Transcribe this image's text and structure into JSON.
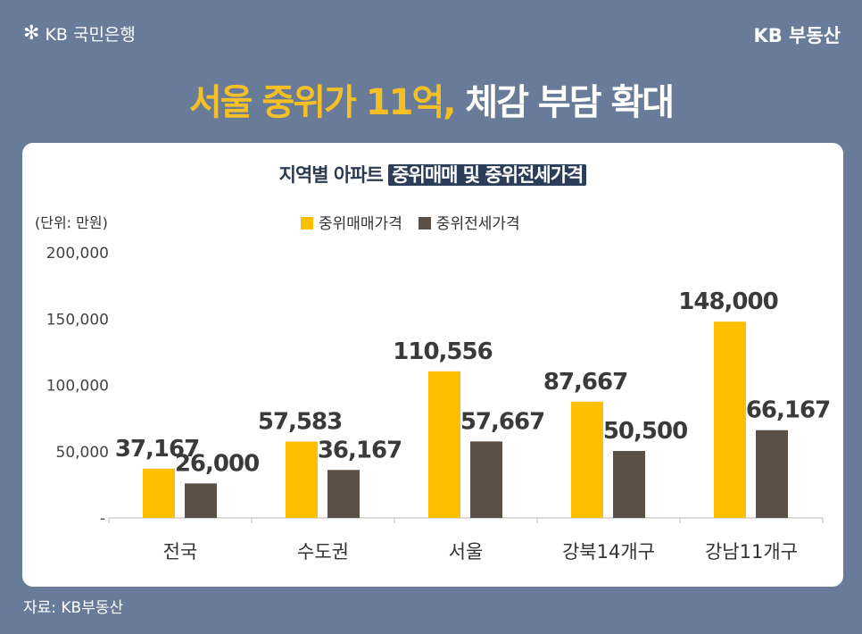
{
  "header": {
    "bank_logo": "KB 국민은행",
    "brand": "KB 부동산",
    "headline_highlight": "서울 중위가 11억,",
    "headline_rest": " 체감 부담 확대"
  },
  "footer": {
    "source": "자료: KB부동산"
  },
  "colors": {
    "background": "#687b98",
    "sale": "#fdbf00",
    "jeonse": "#5b5045",
    "headline_highlight": "#f5c026"
  },
  "chart_data": {
    "type": "bar",
    "title_plain": "지역별 아파트 ",
    "title_highlight": "중위매매 및 중위전세가격",
    "unit_label": "(단위: 만원)",
    "categories": [
      "전국",
      "수도권",
      "서울",
      "강북14개구",
      "강남11개구"
    ],
    "series": [
      {
        "name": "중위매매가격",
        "values": [
          37167,
          57583,
          110556,
          87667,
          148000
        ]
      },
      {
        "name": "중위전세가격",
        "values": [
          26000,
          36167,
          57667,
          50500,
          66167
        ]
      }
    ],
    "data_labels": [
      [
        "37,167",
        "57,583",
        "110,556",
        "87,667",
        "148,000"
      ],
      [
        "26,000",
        "36,167",
        "57,667",
        "50,500",
        "66,167"
      ]
    ],
    "yticks": [
      0,
      50000,
      100000,
      150000,
      200000
    ],
    "ytick_labels": [
      "-",
      "50,000",
      "100,000",
      "150,000",
      "200,000"
    ],
    "ylim": [
      0,
      200000
    ],
    "grid": false,
    "legend": "top-center"
  }
}
